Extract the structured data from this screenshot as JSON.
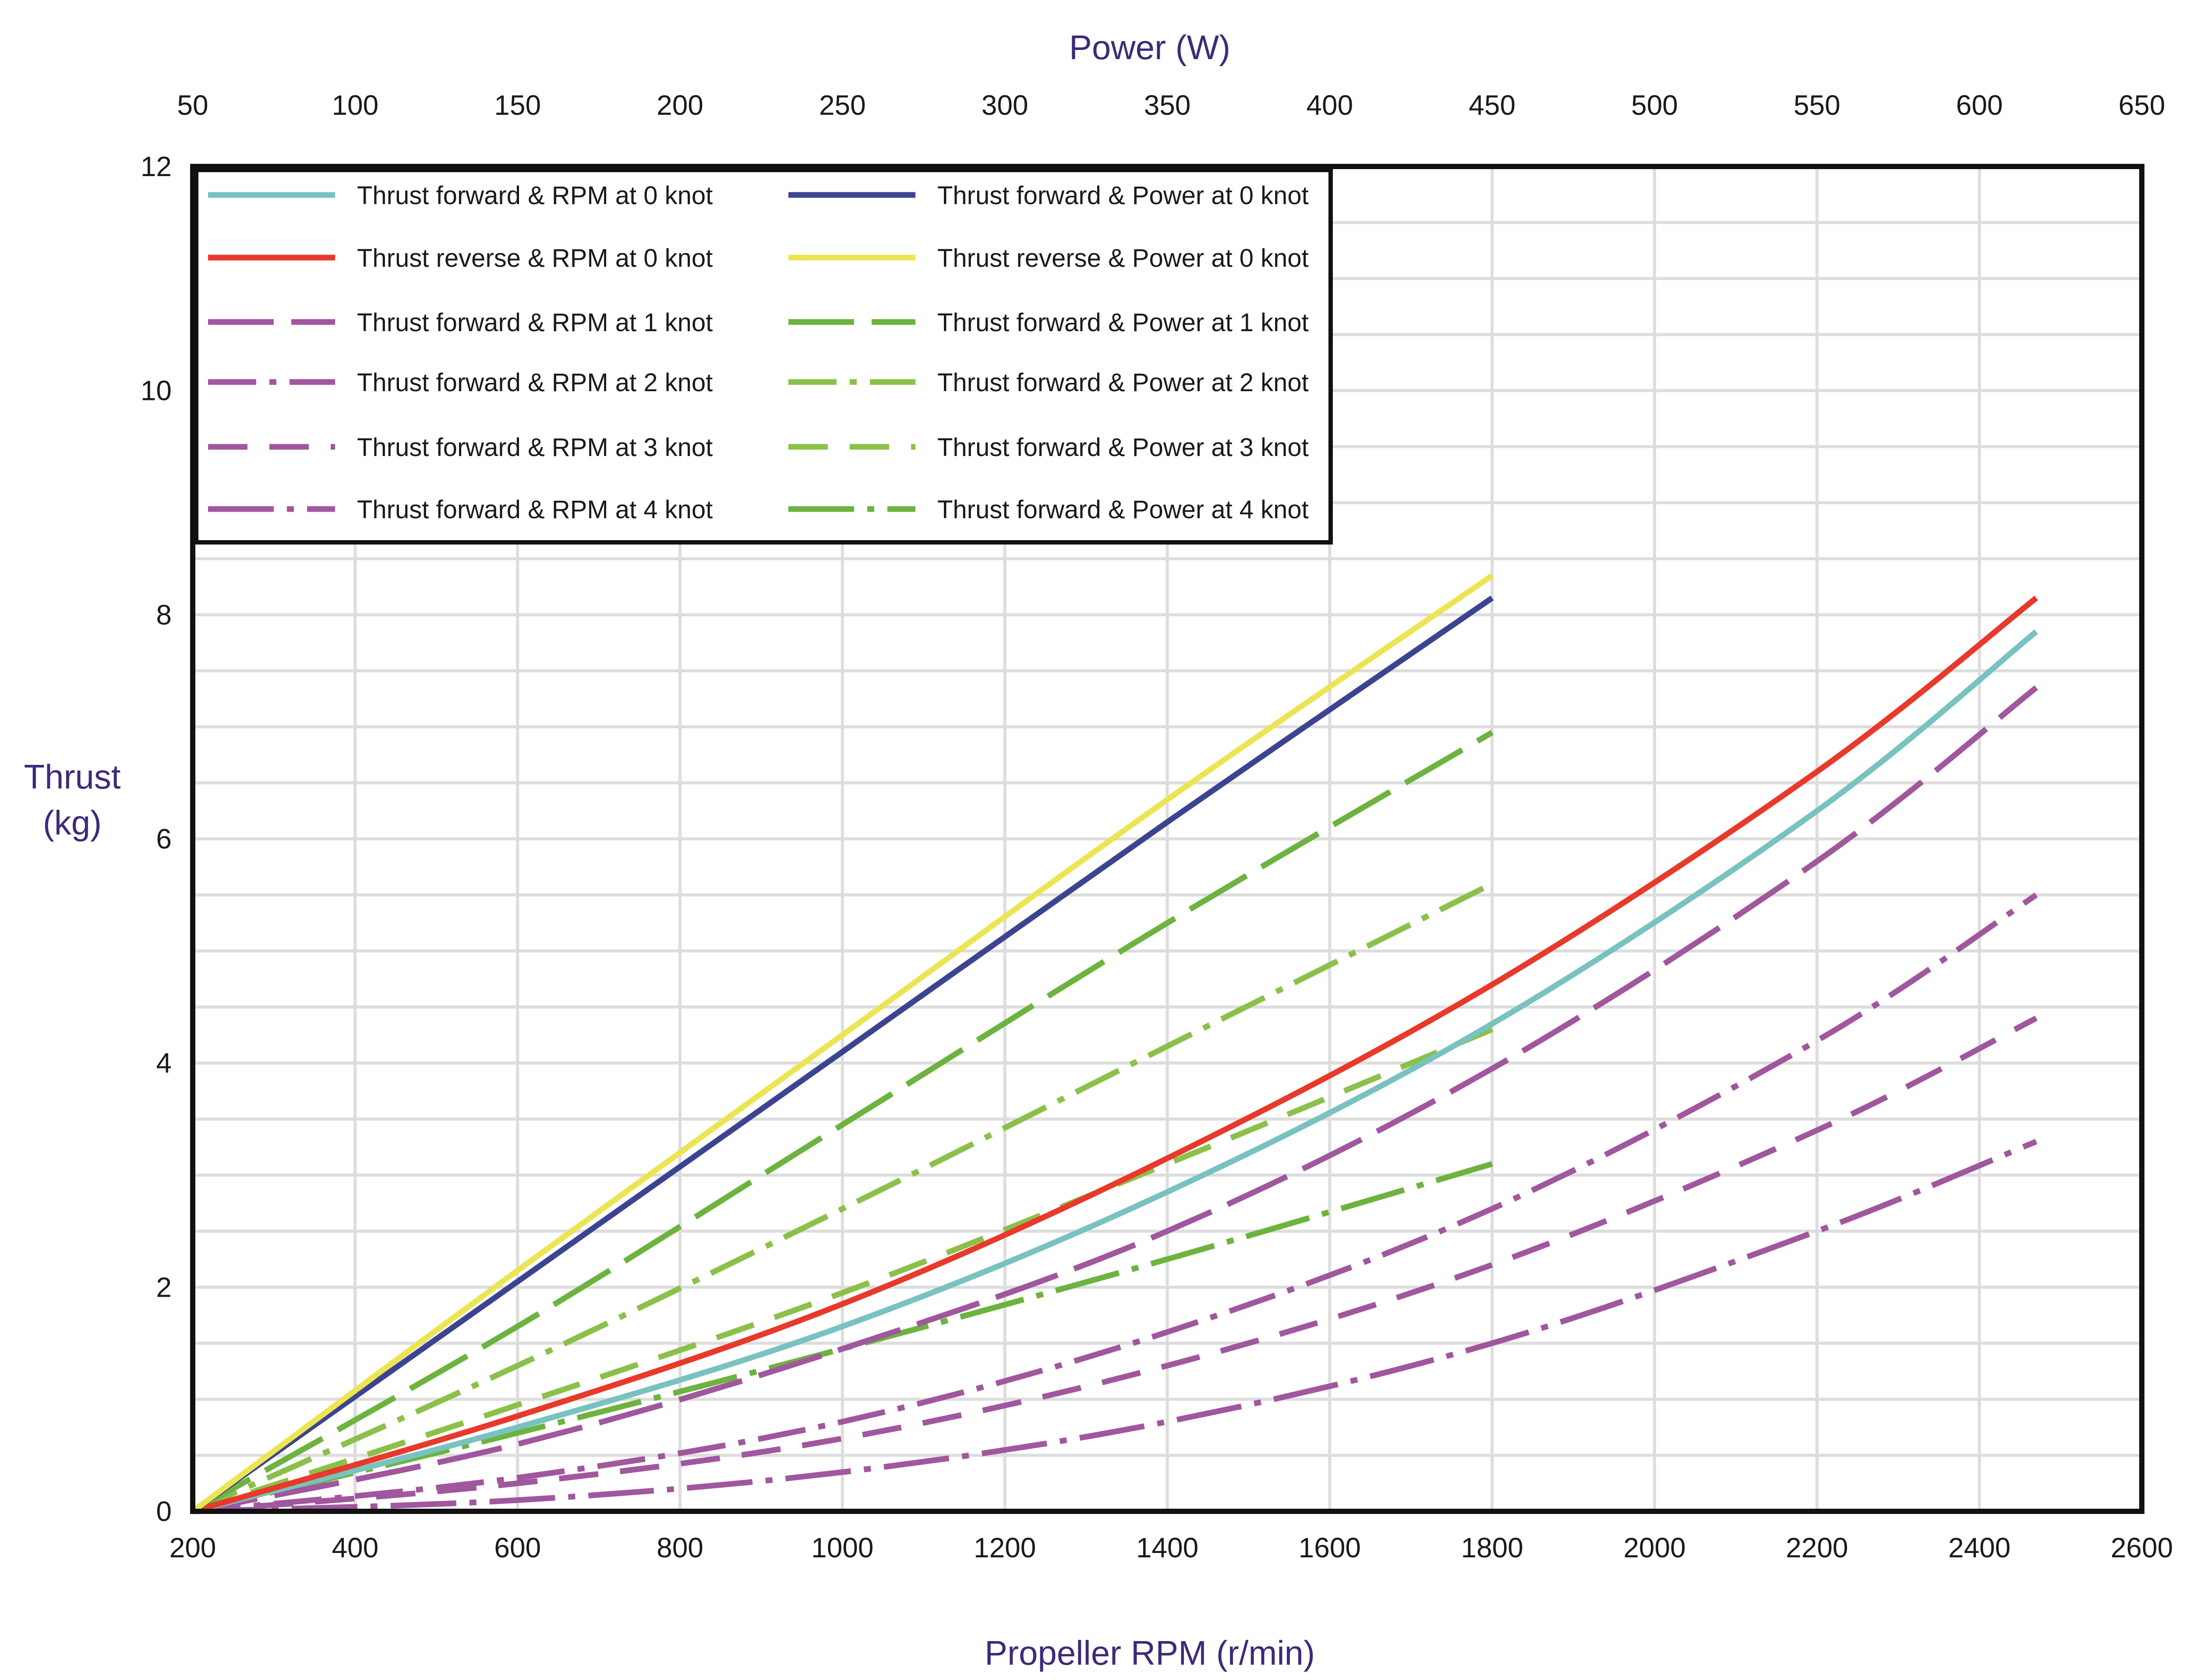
{
  "chart_data": {
    "type": "line",
    "title": "",
    "xlabel": "Propeller RPM (r/min)",
    "x2label": "Power (W)",
    "ylabel_lines": [
      "Thrust",
      "(kg)"
    ],
    "xlim": [
      200,
      2600
    ],
    "x2lim": [
      50,
      650
    ],
    "ylim": [
      0,
      12
    ],
    "x_ticks": [
      200,
      400,
      600,
      800,
      1000,
      1200,
      1400,
      1600,
      1800,
      2000,
      2200,
      2400,
      2600
    ],
    "x2_ticks": [
      50,
      100,
      150,
      200,
      250,
      300,
      350,
      400,
      450,
      500,
      550,
      600,
      650
    ],
    "y_ticks": [
      0,
      2,
      4,
      6,
      8,
      10,
      12
    ],
    "grid": true,
    "legend_position": "top-left",
    "series": [
      {
        "name": "Thrust forward &  RPM at 0 knot",
        "axis": "rpm",
        "color": "#78c2c0",
        "dash": "solid",
        "x": [
          200,
          600,
          1000,
          1400,
          1800,
          2200,
          2470
        ],
        "y": [
          0,
          0.75,
          1.65,
          2.85,
          4.35,
          6.25,
          7.85
        ]
      },
      {
        "name": "Thrust reverse  &  RPM at 0 knot",
        "axis": "rpm",
        "color": "#e8392b",
        "dash": "solid",
        "x": [
          200,
          600,
          1000,
          1400,
          1800,
          2200,
          2470
        ],
        "y": [
          0,
          0.85,
          1.85,
          3.15,
          4.7,
          6.6,
          8.15
        ]
      },
      {
        "name": "Thrust forward &  RPM at 1 knot",
        "axis": "rpm",
        "color": "#a0579e",
        "dash": "long",
        "x": [
          200,
          600,
          1000,
          1400,
          1800,
          2200,
          2470
        ],
        "y": [
          0,
          0.6,
          1.45,
          2.5,
          3.95,
          5.8,
          7.35
        ]
      },
      {
        "name": "Thrust forward &  RPM at 2 knot",
        "axis": "rpm",
        "color": "#a0579e",
        "dash": "dashdot",
        "x": [
          200,
          600,
          1000,
          1400,
          1800,
          2200,
          2470
        ],
        "y": [
          0,
          0.3,
          0.8,
          1.6,
          2.7,
          4.2,
          5.5
        ]
      },
      {
        "name": "Thrust forward &  RPM at 3 knot",
        "axis": "rpm",
        "color": "#a0579e",
        "dash": "medium",
        "x": [
          200,
          600,
          1000,
          1400,
          1800,
          2200,
          2470
        ],
        "y": [
          0,
          0.25,
          0.65,
          1.3,
          2.2,
          3.4,
          4.4
        ]
      },
      {
        "name": "Thrust forward &  RPM at 4 knot",
        "axis": "rpm",
        "color": "#a0579e",
        "dash": "longdot",
        "x": [
          200,
          600,
          1000,
          1400,
          1800,
          2200,
          2470
        ],
        "y": [
          0,
          0.1,
          0.35,
          0.8,
          1.5,
          2.5,
          3.3
        ]
      },
      {
        "name": "Thrust forward & Power at 0 knot",
        "axis": "power",
        "color": "#3c4491",
        "dash": "solid",
        "x": [
          50,
          150,
          250,
          350,
          450
        ],
        "y": [
          0,
          2.05,
          4.1,
          6.15,
          8.15
        ]
      },
      {
        "name": "Thrust reverse & Power at 0 knot",
        "axis": "power",
        "color": "#ece553",
        "dash": "solid",
        "x": [
          50,
          150,
          250,
          350,
          450
        ],
        "y": [
          0,
          2.15,
          4.25,
          6.35,
          8.35
        ]
      },
      {
        "name": "Thrust forward & Power at 1 knot",
        "axis": "power",
        "color": "#6db33f",
        "dash": "long",
        "x": [
          50,
          150,
          250,
          350,
          450
        ],
        "y": [
          0,
          1.65,
          3.45,
          5.25,
          6.95
        ]
      },
      {
        "name": "Thrust forward & Power at 2 knot",
        "axis": "power",
        "color": "#8cc04a",
        "dash": "dashdot",
        "x": [
          50,
          150,
          250,
          350,
          450
        ],
        "y": [
          0,
          1.3,
          2.7,
          4.15,
          5.6
        ]
      },
      {
        "name": "Thrust forward & Power at 3 knot",
        "axis": "power",
        "color": "#8cc04a",
        "dash": "medium",
        "x": [
          50,
          150,
          250,
          350,
          450
        ],
        "y": [
          0,
          0.95,
          1.95,
          3.1,
          4.3
        ]
      },
      {
        "name": "Thrust forward & Power at 4 knot",
        "axis": "power",
        "color": "#6db33f",
        "dash": "longdot",
        "x": [
          50,
          150,
          250,
          350,
          450
        ],
        "y": [
          0,
          0.7,
          1.45,
          2.25,
          3.1
        ]
      }
    ]
  }
}
